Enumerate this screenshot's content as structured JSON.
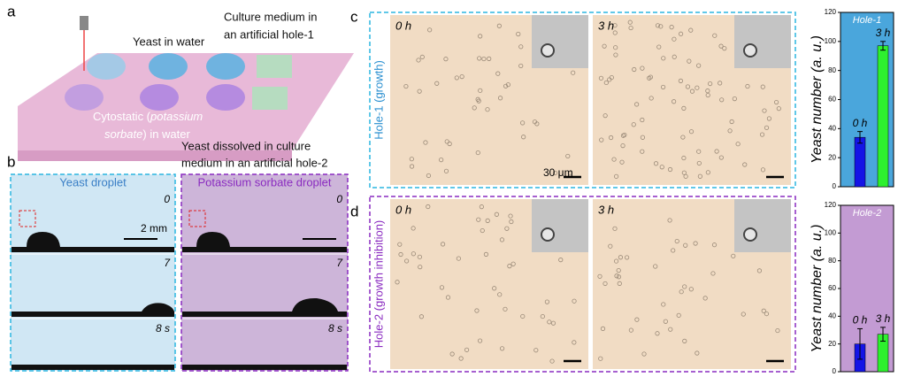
{
  "figure": {
    "panel_a": {
      "label": "a",
      "yeast_in_water": "Yeast in water",
      "culture_medium": [
        "Culture medium in",
        "an artificial hole-1"
      ],
      "cytostatic": [
        "Cytostatic (",
        "potassium",
        "sorbate",
        ") in water"
      ],
      "yeast_dissolved": [
        "Yeast dissolved in culture",
        "medium in an artificial hole-2"
      ]
    },
    "panel_b": {
      "label": "b",
      "left_title": "Yeast droplet",
      "right_title": "Potassium sorbate droplet",
      "times": [
        "0",
        "7",
        "8 s"
      ],
      "scale": "2 mm"
    },
    "panel_c": {
      "label": "c",
      "side": "Hole-1 (growth)",
      "times": [
        "0 h",
        "3 h"
      ],
      "scale": "30 μm"
    },
    "panel_d": {
      "label": "d",
      "side": "Hole-2 (growth inhibition)",
      "times": [
        "0 h",
        "3 h"
      ]
    }
  },
  "chart_data": [
    {
      "type": "bar",
      "title": "Hole-1",
      "ylabel": "Yeast number (a. u.)",
      "categories": [
        "0 h",
        "3 h"
      ],
      "values": [
        34,
        97
      ],
      "errors": [
        4,
        3
      ],
      "colors": [
        "#1414e6",
        "#2ef02e"
      ],
      "background": "#4aa6dc",
      "ylim": [
        0,
        120
      ],
      "yticks": [
        0,
        20,
        40,
        60,
        80,
        100,
        120
      ]
    },
    {
      "type": "bar",
      "title": "Hole-2",
      "ylabel": "Yeast number (a. u.)",
      "categories": [
        "0 h",
        "3 h"
      ],
      "values": [
        20,
        27
      ],
      "errors": [
        11,
        5
      ],
      "colors": [
        "#1414e6",
        "#2ef02e"
      ],
      "background": "#c39bd3",
      "ylim": [
        0,
        120
      ],
      "yticks": [
        0,
        20,
        40,
        60,
        80,
        100,
        120
      ]
    }
  ]
}
